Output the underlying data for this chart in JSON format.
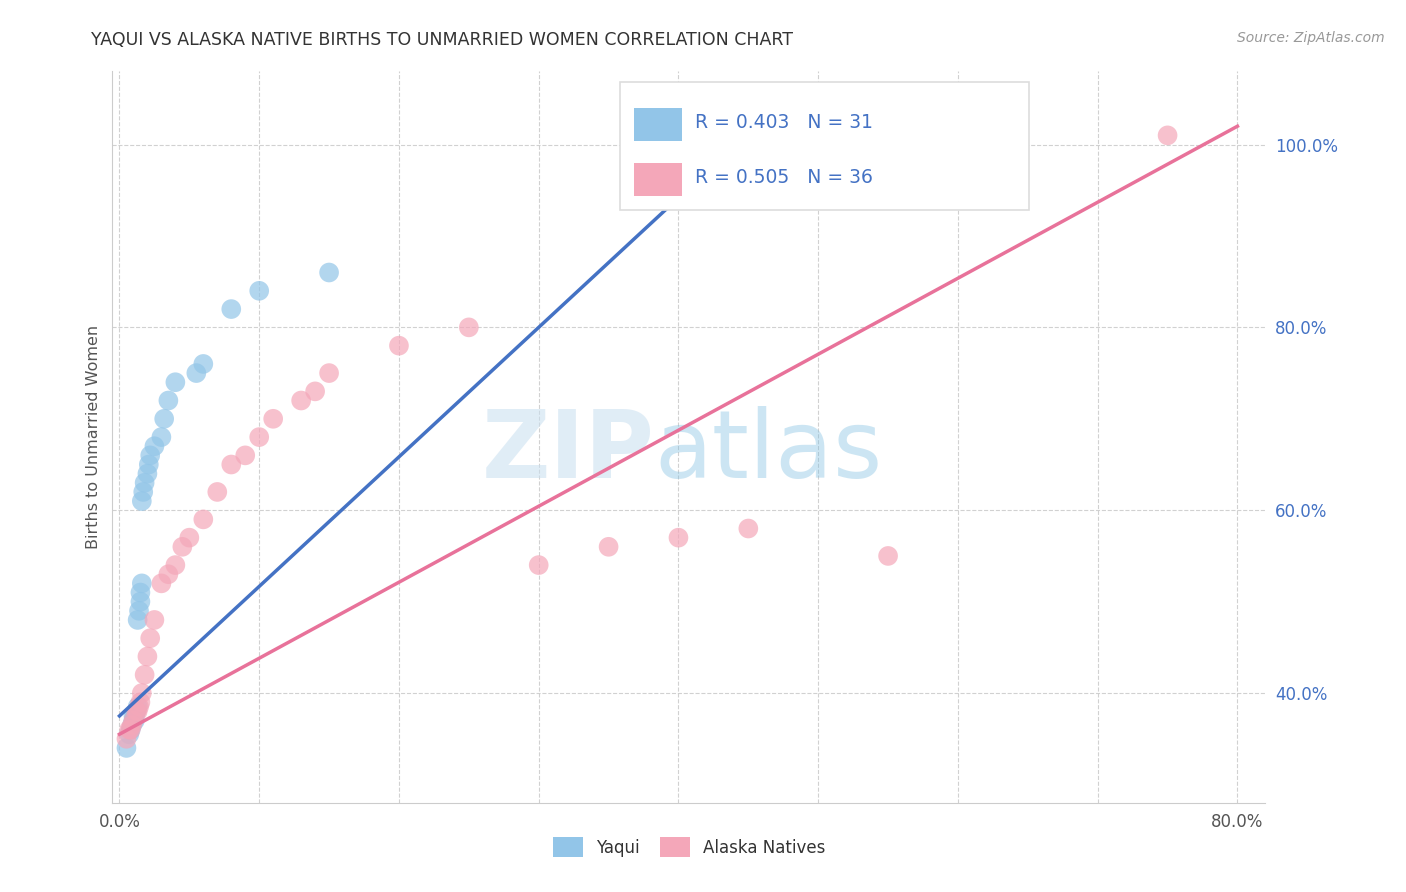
{
  "title": "YAQUI VS ALASKA NATIVE BIRTHS TO UNMARRIED WOMEN CORRELATION CHART",
  "source": "Source: ZipAtlas.com",
  "ylabel": "Births to Unmarried Women",
  "xlim": [
    -0.005,
    0.82
  ],
  "ylim": [
    0.28,
    1.08
  ],
  "xticks": [
    0.0,
    0.1,
    0.2,
    0.3,
    0.4,
    0.5,
    0.6,
    0.7,
    0.8
  ],
  "xticklabels": [
    "0.0%",
    "",
    "",
    "",
    "",
    "",
    "",
    "",
    "80.0%"
  ],
  "yticks": [
    0.4,
    0.6,
    0.8,
    1.0
  ],
  "yticklabels": [
    "40.0%",
    "60.0%",
    "80.0%",
    "100.0%"
  ],
  "yaqui_color": "#92C5E8",
  "alaska_color": "#F4A7B9",
  "trend_blue": "#4472C4",
  "trend_pink": "#E8729A",
  "legend_R_yaqui": "R = 0.403",
  "legend_N_yaqui": "N = 31",
  "legend_R_alaska": "R = 0.505",
  "legend_N_alaska": "N = 36",
  "watermark_zip": "ZIP",
  "watermark_atlas": "atlas",
  "yaqui_x": [
    0.005,
    0.007,
    0.008,
    0.009,
    0.01,
    0.01,
    0.011,
    0.011,
    0.012,
    0.013,
    0.013,
    0.014,
    0.015,
    0.015,
    0.016,
    0.016,
    0.017,
    0.018,
    0.02,
    0.021,
    0.022,
    0.025,
    0.03,
    0.032,
    0.035,
    0.04,
    0.055,
    0.06,
    0.08,
    0.1,
    0.15
  ],
  "yaqui_y": [
    0.34,
    0.355,
    0.36,
    0.365,
    0.37,
    0.375,
    0.375,
    0.37,
    0.38,
    0.385,
    0.48,
    0.49,
    0.5,
    0.51,
    0.52,
    0.61,
    0.62,
    0.63,
    0.64,
    0.65,
    0.66,
    0.67,
    0.68,
    0.7,
    0.72,
    0.74,
    0.75,
    0.76,
    0.82,
    0.84,
    0.86
  ],
  "alaska_x": [
    0.005,
    0.007,
    0.008,
    0.009,
    0.01,
    0.012,
    0.013,
    0.014,
    0.015,
    0.016,
    0.018,
    0.02,
    0.022,
    0.025,
    0.03,
    0.035,
    0.04,
    0.045,
    0.05,
    0.06,
    0.07,
    0.08,
    0.09,
    0.1,
    0.11,
    0.13,
    0.14,
    0.15,
    0.2,
    0.25,
    0.3,
    0.35,
    0.4,
    0.45,
    0.55,
    0.75
  ],
  "alaska_y": [
    0.35,
    0.36,
    0.36,
    0.365,
    0.37,
    0.38,
    0.38,
    0.385,
    0.39,
    0.4,
    0.42,
    0.44,
    0.46,
    0.48,
    0.52,
    0.53,
    0.54,
    0.56,
    0.57,
    0.59,
    0.62,
    0.65,
    0.66,
    0.68,
    0.7,
    0.72,
    0.73,
    0.75,
    0.78,
    0.8,
    0.54,
    0.56,
    0.57,
    0.58,
    0.55,
    1.01
  ]
}
